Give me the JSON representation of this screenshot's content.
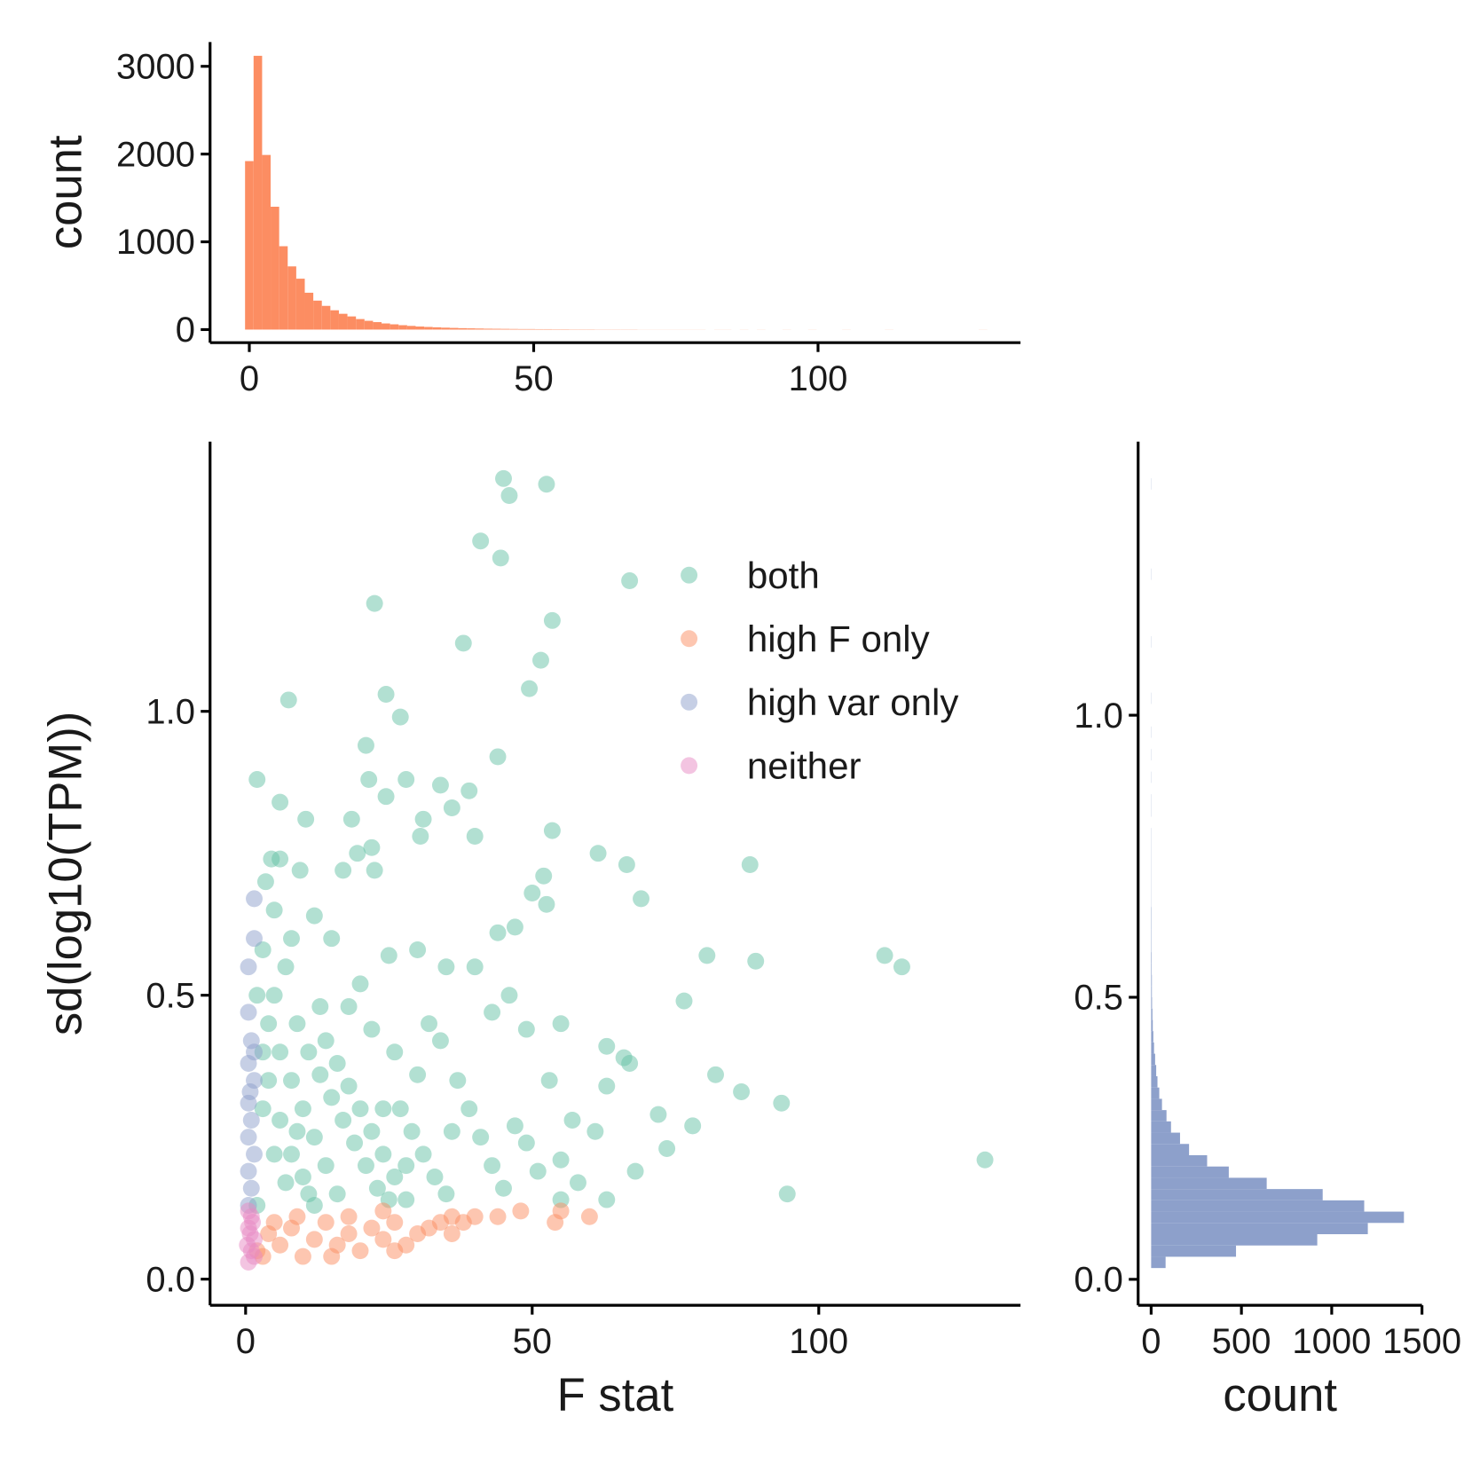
{
  "chart_data": [
    {
      "type": "histogram",
      "orientation": "vertical",
      "y_label": "count",
      "color": "#fc8d62",
      "grid": false,
      "xlim": [
        -6.9,
        135.6
      ],
      "xticks": [
        0,
        50,
        100
      ],
      "ylim": [
        -149,
        3277
      ],
      "yticks": [
        0,
        1000,
        2000,
        3000
      ],
      "bins": [
        -0.75,
        0.75,
        2.25,
        3.75,
        5.25,
        6.75,
        8.25,
        9.75,
        11.25,
        12.75,
        14.25,
        15.75,
        17.25,
        18.75,
        20.25,
        21.75,
        23.25,
        24.75,
        26.25,
        27.75,
        29.25,
        30.75,
        32.25,
        33.75,
        35.25,
        36.75,
        38.25,
        39.75,
        41.25,
        42.75,
        44.25,
        45.75,
        47.25,
        48.75,
        50.25,
        51.75,
        53.25,
        54.75,
        56.25,
        57.75,
        59.25,
        60.75,
        62.25,
        63.75,
        65.25,
        66.75,
        68.25,
        69.75,
        71.25,
        72.75,
        74.25,
        75.75,
        77.25,
        78.75,
        80.25,
        81.75,
        83.25,
        84.75,
        86.25,
        87.75,
        89.25,
        90.75,
        92.25,
        93.75,
        95.25,
        96.75,
        98.25,
        99.75,
        101.25,
        102.75,
        104.25,
        105.75,
        107.25,
        108.75,
        110.25,
        111.75,
        113.25,
        114.75,
        116.25,
        117.75,
        119.25,
        120.75,
        122.25,
        123.75,
        125.25,
        126.75,
        128.25,
        129.75,
        131.25
      ],
      "values": [
        1920,
        3120,
        1990,
        1400,
        950,
        720,
        580,
        420,
        330,
        270,
        220,
        180,
        150,
        120,
        100,
        85,
        70,
        60,
        50,
        42,
        35,
        30,
        26,
        22,
        19,
        16,
        14,
        12,
        10,
        9,
        8,
        7,
        6,
        6,
        5,
        5,
        4,
        4,
        3,
        3,
        3,
        2,
        2,
        2,
        2,
        2,
        1,
        1,
        1,
        1,
        1,
        1,
        1,
        1,
        0,
        1,
        1,
        0,
        1,
        0,
        1,
        0,
        0,
        1,
        0,
        0,
        1,
        0,
        0,
        0,
        1,
        0,
        0,
        0,
        0,
        1,
        0,
        0,
        0,
        0,
        0,
        0,
        0,
        0,
        0,
        0,
        1,
        0
      ]
    },
    {
      "type": "scatter",
      "x_label": "F stat",
      "y_label": "sd(log10(TPM))",
      "grid": false,
      "legend_position": "inside-top-right",
      "xlim": [
        -6.2,
        135.2
      ],
      "xticks": [
        0,
        50,
        100
      ],
      "ylim": [
        -0.046,
        1.475
      ],
      "yticks": [
        {
          "value": 0,
          "label": "0.0"
        },
        0.5,
        {
          "value": 1,
          "label": "1.0"
        }
      ],
      "series": [
        {
          "name": "both",
          "color": "#66c2a5",
          "x": [
            45,
            52.5,
            46,
            41,
            44.5,
            67,
            22.5,
            53.5,
            38,
            51.5,
            49.5,
            24.5,
            7.5,
            27,
            21,
            44,
            2,
            21.5,
            28,
            34,
            39,
            24.5,
            6,
            36,
            10.5,
            18.5,
            31,
            53.5,
            40,
            30.5,
            19.5,
            22,
            61.5,
            66.5,
            88,
            6,
            4.5,
            9.5,
            17,
            22.5,
            3.5,
            52,
            69,
            52.5,
            50,
            80.5,
            89,
            111.5,
            114.5,
            129,
            94.5,
            93.5,
            86.5,
            82,
            78,
            76.5,
            72,
            73.5,
            67,
            66,
            63,
            63,
            68,
            61,
            63,
            57,
            55,
            55,
            46,
            49,
            44,
            43,
            47,
            40,
            35,
            30,
            25,
            15,
            12,
            8,
            5,
            3,
            2,
            4,
            6,
            8,
            10,
            12,
            14,
            16,
            3,
            5,
            7,
            2,
            9,
            11,
            13,
            15,
            17,
            19,
            21,
            23,
            25,
            27,
            29,
            31,
            33,
            35,
            37,
            39,
            41,
            43,
            45,
            47,
            49,
            51,
            53,
            55,
            58,
            18,
            22,
            26,
            30,
            34,
            20,
            24,
            28,
            32,
            36,
            4,
            6,
            8,
            10,
            12,
            14,
            16,
            18,
            20,
            22,
            24,
            26,
            28,
            3,
            5,
            7,
            9,
            11,
            13
          ],
          "y": [
            1.41,
            1.4,
            1.38,
            1.3,
            1.27,
            1.23,
            1.19,
            1.16,
            1.12,
            1.09,
            1.04,
            1.03,
            1.02,
            0.99,
            0.94,
            0.92,
            0.88,
            0.88,
            0.88,
            0.87,
            0.86,
            0.85,
            0.84,
            0.83,
            0.81,
            0.81,
            0.81,
            0.79,
            0.78,
            0.78,
            0.75,
            0.76,
            0.75,
            0.73,
            0.73,
            0.74,
            0.74,
            0.72,
            0.72,
            0.72,
            0.7,
            0.71,
            0.67,
            0.66,
            0.68,
            0.57,
            0.56,
            0.57,
            0.55,
            0.21,
            0.15,
            0.31,
            0.33,
            0.36,
            0.27,
            0.49,
            0.29,
            0.23,
            0.38,
            0.39,
            0.41,
            0.34,
            0.19,
            0.26,
            0.14,
            0.28,
            0.45,
            0.21,
            0.5,
            0.44,
            0.61,
            0.47,
            0.62,
            0.55,
            0.55,
            0.58,
            0.57,
            0.6,
            0.64,
            0.6,
            0.65,
            0.58,
            0.5,
            0.45,
            0.4,
            0.35,
            0.3,
            0.25,
            0.2,
            0.15,
            0.3,
            0.22,
            0.17,
            0.13,
            0.45,
            0.4,
            0.36,
            0.32,
            0.28,
            0.24,
            0.2,
            0.16,
            0.14,
            0.3,
            0.26,
            0.22,
            0.18,
            0.15,
            0.35,
            0.3,
            0.25,
            0.2,
            0.16,
            0.27,
            0.24,
            0.19,
            0.35,
            0.14,
            0.17,
            0.48,
            0.44,
            0.4,
            0.36,
            0.42,
            0.52,
            0.3,
            0.2,
            0.45,
            0.26,
            0.35,
            0.28,
            0.22,
            0.18,
            0.13,
            0.42,
            0.38,
            0.34,
            0.3,
            0.26,
            0.22,
            0.18,
            0.14,
            0.4,
            0.5,
            0.55,
            0.26,
            0.15,
            0.48
          ]
        },
        {
          "name": "high F only",
          "color": "#fc8d62",
          "x": [
            2,
            4,
            6,
            8,
            10,
            12,
            14,
            16,
            18,
            20,
            22,
            24,
            26,
            28,
            30,
            32,
            34,
            36,
            38,
            40,
            44,
            48,
            54,
            55,
            60,
            36,
            26,
            3,
            5,
            9,
            15,
            18,
            24
          ],
          "y": [
            0.05,
            0.08,
            0.06,
            0.09,
            0.04,
            0.07,
            0.1,
            0.06,
            0.08,
            0.05,
            0.09,
            0.07,
            0.1,
            0.06,
            0.08,
            0.09,
            0.1,
            0.11,
            0.1,
            0.11,
            0.11,
            0.12,
            0.1,
            0.12,
            0.11,
            0.08,
            0.05,
            0.04,
            0.1,
            0.11,
            0.04,
            0.11,
            0.12
          ]
        },
        {
          "name": "high var only",
          "color": "#8da0cb",
          "x": [
            1.5,
            1.5,
            0.5,
            0.5,
            1,
            0.5,
            1.5,
            0.5,
            1,
            0.5,
            1.5,
            0.5,
            1,
            0.5,
            1.5,
            0.8
          ],
          "y": [
            0.67,
            0.6,
            0.55,
            0.47,
            0.42,
            0.38,
            0.35,
            0.31,
            0.28,
            0.25,
            0.22,
            0.19,
            0.16,
            0.13,
            0.4,
            0.33
          ]
        },
        {
          "name": "neither",
          "color": "#e78ac3",
          "x": [
            0.5,
            1,
            1.5,
            0.5,
            1,
            1.5,
            0.3,
            0.8,
            1.2,
            0.5
          ],
          "y": [
            0.03,
            0.05,
            0.07,
            0.09,
            0.11,
            0.04,
            0.06,
            0.08,
            0.1,
            0.12
          ]
        }
      ]
    },
    {
      "type": "histogram",
      "orientation": "horizontal",
      "x_label": "count",
      "color": "#8da0cb",
      "grid": false,
      "xlim": [
        -72,
        1500
      ],
      "xticks": [
        0,
        500,
        1000,
        1500
      ],
      "ylim": [
        -0.046,
        1.485
      ],
      "yticks": [
        {
          "value": 0,
          "label": "0.0"
        },
        0.5,
        {
          "value": 1,
          "label": "1.0"
        }
      ],
      "bins": [
        0.02,
        0.04,
        0.06,
        0.08,
        0.1,
        0.12,
        0.14,
        0.16,
        0.18,
        0.2,
        0.22,
        0.24,
        0.26,
        0.28,
        0.3,
        0.32,
        0.34,
        0.36,
        0.38,
        0.4,
        0.42,
        0.44,
        0.46,
        0.48,
        0.5,
        0.52,
        0.54,
        0.56,
        0.58,
        0.6,
        0.62,
        0.64,
        0.66,
        0.68,
        0.7,
        0.72,
        0.74,
        0.76,
        0.78,
        0.8,
        0.82,
        0.84,
        0.86,
        0.88,
        0.9,
        0.92,
        0.94,
        0.96,
        0.98,
        1.0,
        1.02,
        1.04,
        1.06,
        1.08,
        1.1,
        1.12,
        1.14,
        1.16,
        1.18,
        1.2,
        1.22,
        1.24,
        1.26,
        1.28,
        1.3,
        1.32,
        1.34,
        1.36,
        1.38,
        1.4,
        1.42
      ],
      "values": [
        80,
        470,
        920,
        1200,
        1400,
        1180,
        950,
        640,
        430,
        310,
        210,
        160,
        110,
        85,
        60,
        45,
        35,
        28,
        22,
        16,
        12,
        9,
        7,
        5,
        4,
        4,
        3,
        3,
        2,
        2,
        2,
        2,
        1,
        1,
        1,
        1,
        1,
        1,
        1,
        0,
        1,
        1,
        0,
        1,
        0,
        1,
        0,
        1,
        0,
        0,
        1,
        0,
        0,
        0,
        0,
        1,
        0,
        0,
        0,
        0,
        0,
        1,
        0,
        0,
        0,
        0,
        0,
        0,
        0,
        1
      ]
    }
  ]
}
